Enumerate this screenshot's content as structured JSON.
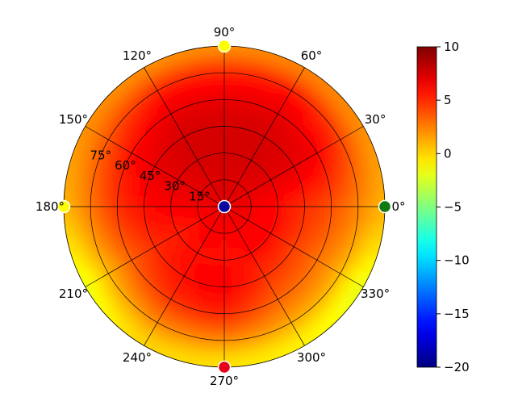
{
  "chart_data": {
    "type": "heatmap",
    "projection": "polar",
    "angle_ticks": [
      {
        "value": 0,
        "label": "0°"
      },
      {
        "value": 30,
        "label": "30°"
      },
      {
        "value": 60,
        "label": "60°"
      },
      {
        "value": 90,
        "label": "90°"
      },
      {
        "value": 120,
        "label": "120°"
      },
      {
        "value": 150,
        "label": "150°"
      },
      {
        "value": 180,
        "label": "180°"
      },
      {
        "value": 210,
        "label": "210°"
      },
      {
        "value": 240,
        "label": "240°"
      },
      {
        "value": 270,
        "label": "270°"
      },
      {
        "value": 300,
        "label": "300°"
      },
      {
        "value": 330,
        "label": "330°"
      }
    ],
    "radial_ticks": [
      {
        "value": 15,
        "label": "15°"
      },
      {
        "value": 30,
        "label": "30°"
      },
      {
        "value": 45,
        "label": "45°"
      },
      {
        "value": 60,
        "label": "60°"
      },
      {
        "value": 75,
        "label": "75°"
      }
    ],
    "rlim": [
      0,
      90
    ],
    "colormap": "jet",
    "colorbar": {
      "vmin": -20,
      "vmax": 10,
      "ticks": [
        {
          "value": 10,
          "label": "10"
        },
        {
          "value": 5,
          "label": "5"
        },
        {
          "value": 0,
          "label": "0"
        },
        {
          "value": -5,
          "label": "−5"
        },
        {
          "value": -10,
          "label": "−10"
        },
        {
          "value": -15,
          "label": "−15"
        },
        {
          "value": -20,
          "label": "−20"
        }
      ]
    },
    "field_estimate": {
      "description_values": "approximate color value by zenith ring (0-90) and azimuth sector",
      "zenith": [
        0,
        15,
        30,
        45,
        60,
        75,
        85,
        90
      ],
      "azimuth": [
        0,
        30,
        60,
        90,
        120,
        150,
        180,
        210,
        240,
        270,
        300,
        330
      ],
      "values": [
        [
          7.0,
          7.0,
          7.0,
          7.0,
          7.0,
          7.0,
          7.0,
          7.0,
          7.0,
          7.0,
          7.0,
          7.0
        ],
        [
          6.5,
          7.0,
          7.0,
          7.5,
          7.0,
          7.0,
          6.5,
          6.0,
          6.5,
          6.0,
          6.5,
          6.5
        ],
        [
          6.0,
          7.0,
          7.5,
          7.5,
          7.5,
          7.0,
          6.5,
          5.5,
          6.0,
          6.0,
          6.0,
          6.0
        ],
        [
          5.0,
          7.0,
          7.5,
          7.5,
          7.5,
          7.0,
          6.0,
          5.0,
          6.0,
          6.5,
          5.0,
          4.5
        ],
        [
          4.0,
          6.5,
          7.0,
          7.0,
          7.0,
          6.0,
          5.0,
          3.5,
          5.0,
          5.5,
          3.5,
          3.0
        ],
        [
          2.5,
          4.5,
          6.0,
          5.5,
          5.5,
          4.0,
          3.0,
          1.0,
          2.5,
          2.5,
          1.5,
          1.0
        ],
        [
          1.5,
          2.5,
          3.0,
          3.0,
          3.0,
          2.5,
          1.5,
          -1.0,
          0.5,
          0.0,
          -0.5,
          -1.5
        ],
        [
          1.0,
          2.0,
          2.5,
          2.0,
          2.0,
          2.0,
          1.0,
          -2.0,
          0.0,
          -0.5,
          -1.0,
          -2.0
        ]
      ]
    },
    "markers": [
      {
        "azimuth": 0,
        "zenith": 90,
        "color": "#0f7a0f",
        "value": -5
      },
      {
        "azimuth": 90,
        "zenith": 90,
        "color": "#ffff00",
        "value": 0
      },
      {
        "azimuth": 180,
        "zenith": 90,
        "color": "#ffff00",
        "value": 0
      },
      {
        "azimuth": 270,
        "zenith": 90,
        "color": "#e8001a",
        "value": 8
      },
      {
        "azimuth": 0,
        "zenith": 0,
        "color": "#0a0aa0",
        "value": -18
      }
    ]
  }
}
